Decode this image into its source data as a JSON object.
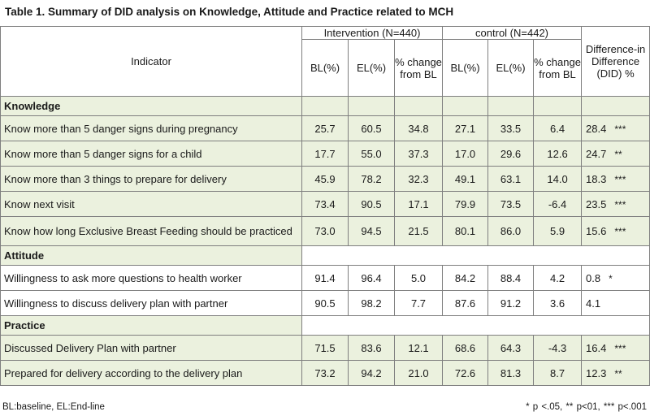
{
  "title": "Table 1.   Summary of DID analysis on Knowledge, Attitude and Practice related to MCH",
  "header": {
    "indicator": "Indicator",
    "intervention_group": "Intervention  (N=440)",
    "control_group": "control   (N=442)",
    "bl": "BL(%)",
    "el": "EL(%)",
    "change": "% change from BL",
    "did": "Difference-in Difference (DID) %"
  },
  "sections": [
    {
      "name": "Knowledge",
      "rows": [
        {
          "indicator": "Know more than 5 danger signs during pregnancy",
          "int_bl": "25.7",
          "int_el": "60.5",
          "int_change": "34.8",
          "ctl_bl": "27.1",
          "ctl_el": "33.5",
          "ctl_change": "6.4",
          "did": "28.4",
          "sig": "***"
        },
        {
          "indicator": "Know more than 5 danger signs for a child",
          "int_bl": "17.7",
          "int_el": "55.0",
          "int_change": "37.3",
          "ctl_bl": "17.0",
          "ctl_el": "29.6",
          "ctl_change": "12.6",
          "did": "24.7",
          "sig": "**"
        },
        {
          "indicator": "Know more than 3 things to prepare for delivery",
          "int_bl": "45.9",
          "int_el": "78.2",
          "int_change": "32.3",
          "ctl_bl": "49.1",
          "ctl_el": "63.1",
          "ctl_change": "14.0",
          "did": "18.3",
          "sig": "***"
        },
        {
          "indicator": "Know next visit",
          "int_bl": "73.4",
          "int_el": "90.5",
          "int_change": "17.1",
          "ctl_bl": "79.9",
          "ctl_el": "73.5",
          "ctl_change": "-6.4",
          "did": "23.5",
          "sig": "***"
        },
        {
          "indicator": "Know how long Exclusive Breast Feeding should be practiced",
          "int_bl": "73.0",
          "int_el": "94.5",
          "int_change": "21.5",
          "ctl_bl": "80.1",
          "ctl_el": "86.0",
          "ctl_change": "5.9",
          "did": "15.6",
          "sig": "***"
        }
      ]
    },
    {
      "name": "Attitude",
      "rows": [
        {
          "indicator": "Willingness to ask more questions to health worker",
          "int_bl": "91.4",
          "int_el": "96.4",
          "int_change": "5.0",
          "ctl_bl": "84.2",
          "ctl_el": "88.4",
          "ctl_change": "4.2",
          "did": "0.8",
          "sig": "*"
        },
        {
          "indicator": "Willingness to discuss delivery plan with partner",
          "int_bl": "90.5",
          "int_el": "98.2",
          "int_change": "7.7",
          "ctl_bl": "87.6",
          "ctl_el": "91.2",
          "ctl_change": "3.6",
          "did": "4.1",
          "sig": ""
        }
      ]
    },
    {
      "name": "Practice",
      "rows": [
        {
          "indicator": "Discussed Delivery Plan with partner",
          "int_bl": "71.5",
          "int_el": "83.6",
          "int_change": "12.1",
          "ctl_bl": "68.6",
          "ctl_el": "64.3",
          "ctl_change": "-4.3",
          "did": "16.4",
          "sig": "***"
        },
        {
          "indicator": "Prepared for delivery according to the delivery plan",
          "int_bl": "73.2",
          "int_el": "94.2",
          "int_change": "21.0",
          "ctl_bl": "72.6",
          "ctl_el": "81.3",
          "ctl_change": "8.7",
          "did": "12.3",
          "sig": "**"
        }
      ]
    }
  ],
  "footnote_left": "BL:baseline, EL:End-line",
  "footnote_right": "* p <.05,  ** p<01,   *** p<.001",
  "colors": {
    "row_shade": "#ebf1de",
    "border": "#7f7f7f"
  }
}
